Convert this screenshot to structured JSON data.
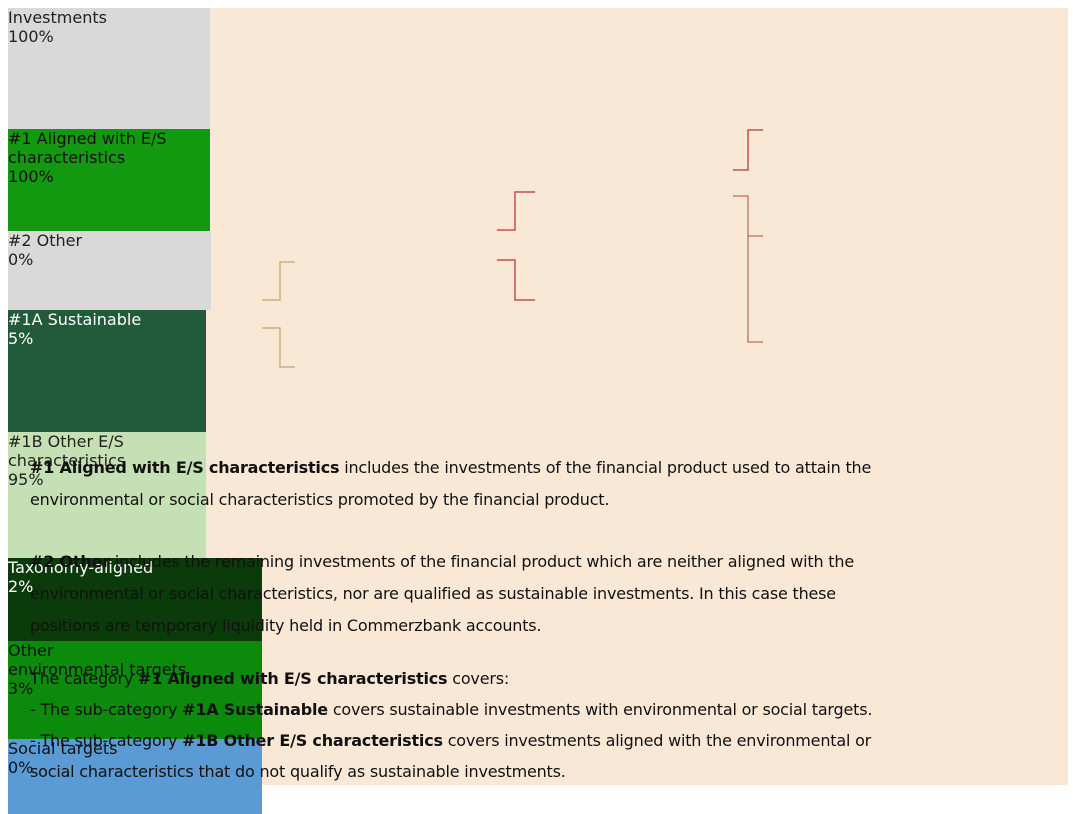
{
  "nodes": [
    {
      "lines": [
        "Investments"
      ],
      "value": "100%"
    },
    {
      "lines": [
        "#1 Aligned with E/S",
        "characteristics"
      ],
      "value": "100%"
    },
    {
      "lines": [
        "#2 Other"
      ],
      "value": "0%"
    },
    {
      "lines": [
        "#1A Sustainable"
      ],
      "value": "5%"
    },
    {
      "lines": [
        "#1B Other E/S",
        "characteristics"
      ],
      "value": "95%"
    },
    {
      "lines": [
        "Taxonomy-aligned"
      ],
      "value": "2%"
    },
    {
      "lines": [
        "Other",
        "environmental targets"
      ],
      "value": "3%"
    },
    {
      "lines": [
        "Social targets"
      ],
      "value": "0%"
    }
  ],
  "paragraphs": [
    [
      [
        {
          "text": "#1 Aligned with E/S characteristics",
          "bold": true
        },
        {
          "text": " includes the investments of the financial product used to attain the",
          "bold": false
        }
      ],
      [
        {
          "text": "environmental or social characteristics promoted by the financial product.",
          "bold": false
        }
      ]
    ],
    [
      [
        {
          "text": "#2 Other",
          "bold": true
        },
        {
          "text": " includes the remaining investments of the financial product which are neither aligned with the",
          "bold": false
        }
      ],
      [
        {
          "text": "environmental or social characteristics, nor are qualified as sustainable investments. In this case these",
          "bold": false
        }
      ],
      [
        {
          "text": "positions are temporary liquidity held in Commerzbank accounts.",
          "bold": false
        }
      ]
    ],
    [
      [
        {
          "text": "The category ",
          "bold": false
        },
        {
          "text": "#1 Aligned with E/S characteristics",
          "bold": true
        },
        {
          "text": " covers:",
          "bold": false
        }
      ],
      [
        {
          "text": "- The sub-category ",
          "bold": false
        },
        {
          "text": "#1A Sustainable",
          "bold": true
        },
        {
          "text": " covers sustainable investments with environmental or social targets.",
          "bold": false
        }
      ],
      [
        {
          "text": "- The sub-category ",
          "bold": false
        },
        {
          "text": "#1B Other E/S characteristics",
          "bold": true
        },
        {
          "text": " covers investments aligned with the environmental or",
          "bold": false
        }
      ],
      [
        {
          "text": "social characteristics that do not qualify as sustainable investments.",
          "bold": false
        }
      ]
    ]
  ]
}
